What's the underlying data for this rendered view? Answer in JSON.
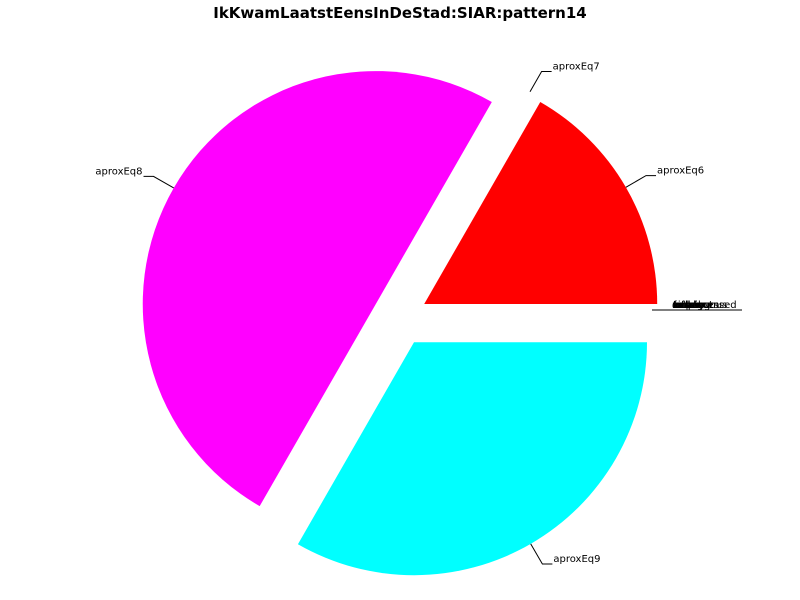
{
  "chart_data": {
    "type": "pie",
    "title": "IkKwamLaatstEensInDeStad:SIAR:pattern14",
    "slices": [
      {
        "label": "aproxEq6",
        "value": 16.7,
        "color": "#ff0000",
        "exploded": true
      },
      {
        "label": "aproxEq7",
        "value": 0.0,
        "color": "#ffffff",
        "exploded": true
      },
      {
        "label": "aproxEq8",
        "value": 50.0,
        "color": "#ff00ff",
        "exploded": true
      },
      {
        "label": "aproxEq9",
        "value": 33.3,
        "color": "#00ffff",
        "exploded": true
      }
    ],
    "overlapping_labels": [
      "ambiguous",
      "unprocessed",
      "unknown",
      "other",
      "missing",
      "failed",
      "timeout",
      "error",
      "empty",
      "total"
    ],
    "legend": "none"
  }
}
